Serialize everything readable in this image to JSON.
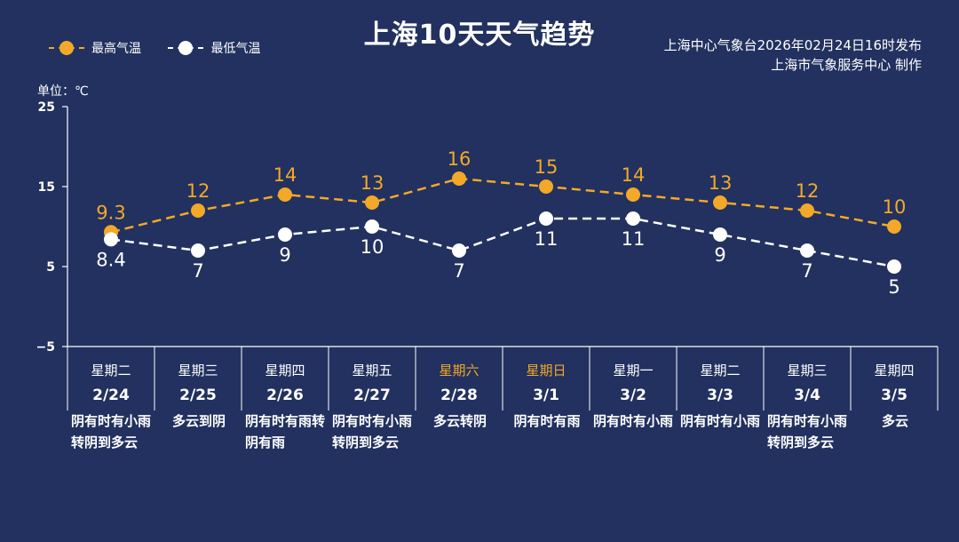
{
  "header": {
    "title": "上海10天天气趋势",
    "issuer_line1": "上海中心气象台2026年02月24日16时发布",
    "issuer_line2": "上海市气象服务中心  制作"
  },
  "colors": {
    "background": "#22315f",
    "high": "#f3a928",
    "low": "#ffffff",
    "weekend": "#f3a928"
  },
  "chart_data": {
    "type": "line",
    "title": "上海10天天气趋势",
    "ylabel": "单位：℃",
    "ylim": [
      -5,
      25
    ],
    "yticks": [
      -5,
      5,
      15,
      25
    ],
    "grid": false,
    "legend_position": "top-left",
    "categories": [
      "2/24",
      "2/25",
      "2/26",
      "2/27",
      "2/28",
      "3/1",
      "3/2",
      "3/3",
      "3/4",
      "3/5"
    ],
    "series": [
      {
        "name": "最高气温",
        "color": "#f3a928",
        "values": [
          9.3,
          12,
          14,
          13,
          16,
          15,
          14,
          13,
          12,
          10
        ]
      },
      {
        "name": "最低气温",
        "color": "#ffffff",
        "values": [
          8.4,
          7,
          9,
          10,
          7,
          11,
          11,
          9,
          7,
          5
        ]
      }
    ]
  },
  "days": [
    {
      "weekday": "星期二",
      "date": "2/24",
      "weather": "阴有时有小雨转阴到多云",
      "weekend": false
    },
    {
      "weekday": "星期三",
      "date": "2/25",
      "weather": "多云到阴",
      "weekend": false
    },
    {
      "weekday": "星期四",
      "date": "2/26",
      "weather": "阴有时有雨转阴有雨",
      "weekend": false
    },
    {
      "weekday": "星期五",
      "date": "2/27",
      "weather": "阴有时有小雨转阴到多云",
      "weekend": false
    },
    {
      "weekday": "星期六",
      "date": "2/28",
      "weather": "多云转阴",
      "weekend": true
    },
    {
      "weekday": "星期日",
      "date": "3/1",
      "weather": "阴有时有雨",
      "weekend": true
    },
    {
      "weekday": "星期一",
      "date": "3/2",
      "weather": "阴有时有小雨",
      "weekend": false
    },
    {
      "weekday": "星期二",
      "date": "3/3",
      "weather": "阴有时有小雨",
      "weekend": false
    },
    {
      "weekday": "星期三",
      "date": "3/4",
      "weather": "阴有时有小雨转阴到多云",
      "weekend": false
    },
    {
      "weekday": "星期四",
      "date": "3/5",
      "weather": "多云",
      "weekend": false
    }
  ]
}
